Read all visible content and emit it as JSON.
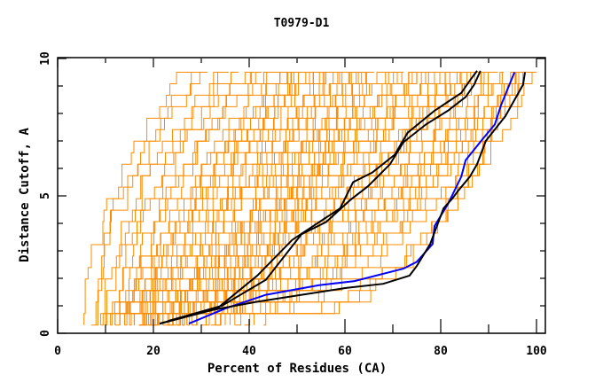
{
  "chart_data": {
    "type": "line",
    "title": "T0979-D1",
    "xlabel": "Percent of Residues (CA)",
    "ylabel": "Distance Cutoff, A",
    "xlim": [
      0,
      100
    ],
    "ylim": [
      0,
      10
    ],
    "x_ticks": [
      "0",
      "20",
      "40",
      "60",
      "80",
      "100"
    ],
    "x_tick_values": [
      0,
      20,
      40,
      60,
      80,
      100
    ],
    "x_minor_step": 10,
    "y_ticks": [
      "0",
      "5",
      "10"
    ],
    "y_tick_values": [
      0,
      5,
      10
    ],
    "y_minor_step": 1,
    "grid": false,
    "legend": "none",
    "colors": {
      "background_models": "#ff8c00",
      "highlight_blue": "#0000ff",
      "highlight_black": "#000000",
      "frame": "#000000"
    },
    "highlight_series": [
      {
        "name": "blue-model",
        "color": "blue",
        "points": [
          [
            27.4,
            0.35
          ],
          [
            35,
            0.9
          ],
          [
            43.5,
            1.4
          ],
          [
            54.6,
            1.75
          ],
          [
            62,
            1.9
          ],
          [
            72.2,
            2.35
          ],
          [
            75,
            2.6
          ],
          [
            78.3,
            3.25
          ],
          [
            78.7,
            3.9
          ],
          [
            81.5,
            4.7
          ],
          [
            84.3,
            5.7
          ],
          [
            85.2,
            6.3
          ],
          [
            88.9,
            7.1
          ],
          [
            91.3,
            7.6
          ],
          [
            92.6,
            8.3
          ],
          [
            95.4,
            9.5
          ]
        ]
      },
      {
        "name": "black-model-a",
        "color": "black",
        "points": [
          [
            21.3,
            0.35
          ],
          [
            32.4,
            0.85
          ],
          [
            41.7,
            1.15
          ],
          [
            60.2,
            1.65
          ],
          [
            68,
            1.8
          ],
          [
            73.5,
            2.1
          ],
          [
            75,
            2.45
          ],
          [
            77.8,
            3.25
          ],
          [
            80.6,
            4.55
          ],
          [
            82.4,
            4.9
          ],
          [
            83.7,
            5.2
          ],
          [
            86.1,
            5.7
          ],
          [
            87.6,
            6.15
          ],
          [
            89.4,
            7.0
          ],
          [
            93.5,
            7.9
          ],
          [
            97.2,
            9.05
          ],
          [
            97.6,
            9.5
          ]
        ]
      },
      {
        "name": "black-model-b",
        "color": "black",
        "points": [
          [
            21.3,
            0.35
          ],
          [
            33.3,
            0.9
          ],
          [
            41.7,
            2.1
          ],
          [
            49,
            3.4
          ],
          [
            59,
            4.55
          ],
          [
            61.7,
            5.5
          ],
          [
            65.7,
            5.85
          ],
          [
            70.4,
            6.5
          ],
          [
            73.1,
            7.3
          ],
          [
            78.7,
            8.1
          ],
          [
            84.3,
            8.75
          ],
          [
            86.1,
            9.2
          ],
          [
            87.6,
            9.55
          ]
        ]
      },
      {
        "name": "black-model-c",
        "color": "black",
        "points": [
          [
            23.1,
            0.45
          ],
          [
            34.3,
            1.0
          ],
          [
            43.5,
            1.95
          ],
          [
            50.9,
            3.6
          ],
          [
            56.1,
            4.05
          ],
          [
            61.1,
            4.85
          ],
          [
            64.8,
            5.35
          ],
          [
            69.4,
            6.15
          ],
          [
            72.2,
            6.95
          ],
          [
            76.9,
            7.6
          ],
          [
            81.5,
            8.1
          ],
          [
            85.2,
            8.6
          ],
          [
            87,
            9.05
          ],
          [
            88.3,
            9.55
          ]
        ]
      }
    ],
    "background_models_note": "Orange curves: each model described by percent of residues at 0.3 A (start) and at 9.5 A (end) with a curvature exponent",
    "background_models": [
      [
        5.5,
        28,
        0.55
      ],
      [
        7,
        30,
        0.6
      ],
      [
        8,
        32,
        0.5
      ],
      [
        9,
        35,
        0.6
      ],
      [
        10,
        37,
        0.55
      ],
      [
        11,
        38,
        0.7
      ],
      [
        12,
        40,
        0.6
      ],
      [
        13,
        41,
        0.65
      ],
      [
        14,
        42,
        0.7
      ],
      [
        15,
        44,
        0.6
      ],
      [
        16,
        45,
        0.75
      ],
      [
        17,
        46,
        0.7
      ],
      [
        18,
        47,
        0.8
      ],
      [
        19,
        48,
        0.7
      ],
      [
        20,
        49,
        0.85
      ],
      [
        21,
        50,
        0.8
      ],
      [
        22,
        51,
        0.9
      ],
      [
        23,
        52,
        0.85
      ],
      [
        24,
        53,
        0.9
      ],
      [
        25,
        54,
        0.95
      ],
      [
        26,
        55,
        0.9
      ],
      [
        27,
        56,
        1.0
      ],
      [
        28,
        57,
        0.95
      ],
      [
        29,
        58,
        1.0
      ],
      [
        30,
        59,
        1.05
      ],
      [
        31,
        60,
        1.0
      ],
      [
        32,
        61,
        1.1
      ],
      [
        33,
        62,
        1.05
      ],
      [
        34,
        63,
        1.1
      ],
      [
        35,
        64,
        1.15
      ],
      [
        36,
        65,
        1.1
      ],
      [
        37,
        66,
        1.2
      ],
      [
        11,
        68,
        1.3
      ],
      [
        12,
        70,
        1.35
      ],
      [
        13,
        72,
        1.4
      ],
      [
        14,
        74,
        1.3
      ],
      [
        15,
        76,
        1.45
      ],
      [
        16,
        78,
        1.4
      ],
      [
        17,
        80,
        1.5
      ],
      [
        18,
        82,
        1.45
      ],
      [
        19,
        84,
        1.6
      ],
      [
        20,
        86,
        1.5
      ],
      [
        21,
        88,
        1.7
      ],
      [
        22,
        90,
        1.6
      ],
      [
        23,
        92,
        1.8
      ],
      [
        24,
        94,
        1.7
      ],
      [
        25,
        96,
        1.9
      ],
      [
        26,
        98,
        1.8
      ],
      [
        27,
        99,
        2.0
      ],
      [
        28,
        100,
        2.1
      ],
      [
        9,
        63,
        1.2
      ],
      [
        10,
        66,
        1.25
      ],
      [
        14,
        58,
        1.0
      ],
      [
        16,
        61,
        1.05
      ],
      [
        12,
        55,
        0.9
      ],
      [
        18,
        72,
        1.3
      ],
      [
        20,
        76,
        1.4
      ],
      [
        22,
        79,
        1.45
      ],
      [
        24,
        83,
        1.55
      ],
      [
        26,
        85,
        1.6
      ],
      [
        29,
        88,
        1.7
      ],
      [
        31,
        91,
        1.8
      ],
      [
        33,
        93,
        1.9
      ],
      [
        35,
        95,
        2.0
      ],
      [
        37,
        97,
        2.1
      ],
      [
        39,
        100,
        2.3
      ],
      [
        41,
        98,
        2.4
      ],
      [
        43,
        96,
        2.6
      ],
      [
        15,
        52,
        0.85
      ],
      [
        13,
        50,
        0.8
      ],
      [
        17,
        67,
        1.2
      ],
      [
        19,
        70,
        1.25
      ],
      [
        21,
        73,
        1.35
      ],
      [
        23,
        75,
        1.35
      ],
      [
        25,
        78,
        1.4
      ],
      [
        27,
        81,
        1.5
      ],
      [
        29,
        84,
        1.55
      ],
      [
        31,
        86,
        1.6
      ],
      [
        33,
        89,
        1.7
      ],
      [
        35,
        92,
        1.75
      ]
    ]
  }
}
